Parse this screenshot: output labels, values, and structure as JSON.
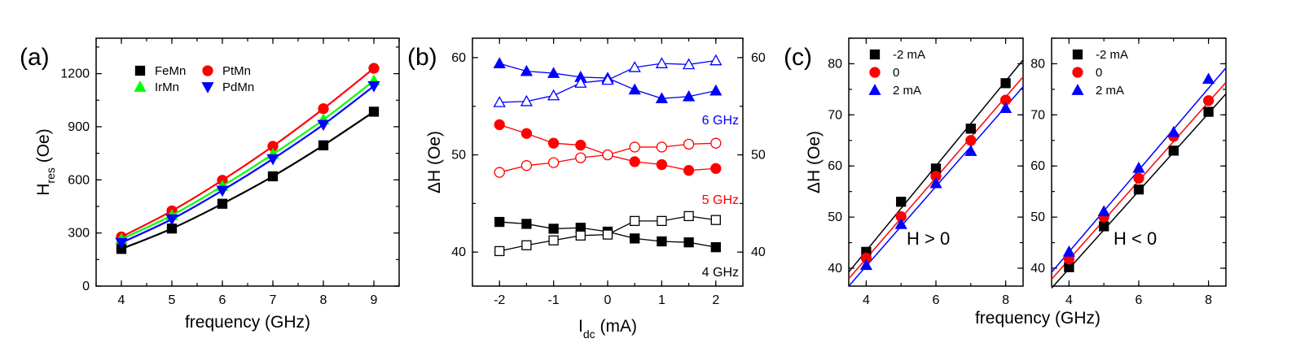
{
  "chart_data": [
    {
      "panel": "(a)",
      "type": "line",
      "xlabel": "frequency (GHz)",
      "ylabel": "H",
      "ylabel_sub": "res",
      "ylabel_suffix": " (Oe)",
      "xlim": [
        3.5,
        9.5
      ],
      "ylim": [
        0,
        1400
      ],
      "xticks": [
        4,
        5,
        6,
        7,
        8,
        9
      ],
      "yticks": [
        0,
        300,
        600,
        900,
        1200
      ],
      "x": [
        4,
        5,
        6,
        7,
        8,
        9
      ],
      "series": [
        {
          "name": "FeMn",
          "color": "#000000",
          "marker": "square",
          "values": [
            210,
            325,
            465,
            620,
            795,
            985
          ]
        },
        {
          "name": "PtMn",
          "color": "#ff0000",
          "marker": "circle",
          "values": [
            278,
            425,
            598,
            790,
            1002,
            1230
          ]
        },
        {
          "name": "IrMn",
          "color": "#00ff00",
          "marker": "triangle-up",
          "values": [
            265,
            400,
            565,
            745,
            940,
            1160
          ]
        },
        {
          "name": "PdMn",
          "color": "#0000ff",
          "marker": "triangle-down",
          "values": [
            245,
            378,
            540,
            718,
            912,
            1130
          ]
        }
      ],
      "legend": "top-left"
    },
    {
      "panel": "(b)",
      "type": "line",
      "xlabel": "I",
      "xlabel_sub": "dc",
      "xlabel_suffix": " (mA)",
      "ylabel": "ΔH (Oe)",
      "xlim": [
        -2.5,
        2.5
      ],
      "ylim": [
        36.5,
        62.0
      ],
      "xticks": [
        -2,
        -1,
        0,
        1,
        2
      ],
      "yticks": [
        40,
        50,
        60
      ],
      "x": [
        -2,
        -1.5,
        -1,
        -0.5,
        0,
        0.5,
        1,
        1.5,
        2
      ],
      "series": [
        {
          "name": "6 GHz filled",
          "color": "#0000ff",
          "marker": "triangle-up",
          "filled": true,
          "values": [
            59.4,
            58.6,
            58.4,
            58.0,
            57.9,
            56.7,
            55.8,
            56.0,
            56.6
          ]
        },
        {
          "name": "6 GHz open",
          "color": "#0000ff",
          "marker": "triangle-up",
          "filled": false,
          "values": [
            55.4,
            55.5,
            56.1,
            57.4,
            57.7,
            59.0,
            59.4,
            59.3,
            59.7
          ]
        },
        {
          "name": "5 GHz filled",
          "color": "#ff0000",
          "marker": "circle",
          "filled": true,
          "values": [
            53.1,
            52.2,
            51.2,
            51.0,
            50.0,
            49.3,
            49.0,
            48.4,
            48.6
          ]
        },
        {
          "name": "5 GHz open",
          "color": "#ff0000",
          "marker": "circle",
          "filled": false,
          "values": [
            48.2,
            48.9,
            49.2,
            49.7,
            50.0,
            50.8,
            50.8,
            51.1,
            51.2
          ]
        },
        {
          "name": "4 GHz filled",
          "color": "#000000",
          "marker": "square",
          "filled": true,
          "values": [
            43.1,
            42.9,
            42.4,
            42.5,
            42.1,
            41.4,
            41.1,
            41.0,
            40.5
          ]
        },
        {
          "name": "4 GHz open",
          "color": "#000000",
          "marker": "square",
          "filled": false,
          "values": [
            40.1,
            40.7,
            41.2,
            41.7,
            41.8,
            43.2,
            43.2,
            43.7,
            43.3
          ]
        }
      ],
      "annotations": [
        {
          "text": "6 GHz",
          "color": "#0000ff"
        },
        {
          "text": "5 GHz",
          "color": "#ff0000"
        },
        {
          "text": "4 GHz",
          "color": "#000000"
        }
      ]
    },
    {
      "panel": "(c)",
      "type": "scatter",
      "xlabel": "frequency (GHz)",
      "ylabel": "ΔH (Oe)",
      "xlim": [
        3.5,
        8.5
      ],
      "ylim": [
        36.5,
        85.0
      ],
      "xticks": [
        4,
        6,
        8
      ],
      "yticks": [
        40,
        50,
        60,
        70,
        80
      ],
      "x": [
        4,
        5,
        6,
        7,
        8
      ],
      "label": "H > 0",
      "series": [
        {
          "name": "-2 mA",
          "color": "#000000",
          "marker": "square",
          "values": [
            43.2,
            53.0,
            59.5,
            67.3,
            76.2
          ]
        },
        {
          "name": "0",
          "color": "#ff0000",
          "marker": "circle",
          "values": [
            42.0,
            50.1,
            58.0,
            65.0,
            72.9
          ]
        },
        {
          "name": "2 mA",
          "color": "#0000ff",
          "marker": "triangle-up",
          "values": [
            40.6,
            48.6,
            56.6,
            62.9,
            71.3
          ]
        }
      ],
      "fits": [
        {
          "name": "-2 mA",
          "color": "#000000",
          "slope": 8.3,
          "intercept": 10.2
        },
        {
          "name": "0",
          "color": "#ff0000",
          "slope": 7.9,
          "intercept": 10.3
        },
        {
          "name": "2 mA",
          "color": "#0000ff",
          "slope": 7.8,
          "intercept": 9.2
        }
      ],
      "legend": "top-left"
    },
    {
      "panel": "",
      "type": "scatter",
      "xlabel": "",
      "ylabel": "",
      "xlim": [
        3.5,
        8.5
      ],
      "ylim": [
        36.5,
        85.0
      ],
      "xticks": [
        4,
        6,
        8
      ],
      "yticks": [
        40,
        50,
        60,
        70,
        80
      ],
      "x": [
        4,
        5,
        6,
        7,
        8
      ],
      "label": "H < 0",
      "series": [
        {
          "name": "-2 mA",
          "color": "#000000",
          "marker": "square",
          "values": [
            40.2,
            48.2,
            55.4,
            63.0,
            70.6
          ]
        },
        {
          "name": "0",
          "color": "#ff0000",
          "marker": "circle",
          "values": [
            41.8,
            50.0,
            57.6,
            65.8,
            72.8
          ]
        },
        {
          "name": "2 mA",
          "color": "#0000ff",
          "marker": "triangle-up",
          "values": [
            43.2,
            51.1,
            59.6,
            66.6,
            77.0
          ]
        }
      ],
      "fits": [
        {
          "name": "-2 mA",
          "color": "#000000",
          "slope": 7.6,
          "intercept": 9.5
        },
        {
          "name": "0",
          "color": "#ff0000",
          "slope": 7.7,
          "intercept": 10.9
        },
        {
          "name": "2 mA",
          "color": "#0000ff",
          "slope": 8.0,
          "intercept": 11.2
        }
      ],
      "legend": "top-left"
    }
  ]
}
